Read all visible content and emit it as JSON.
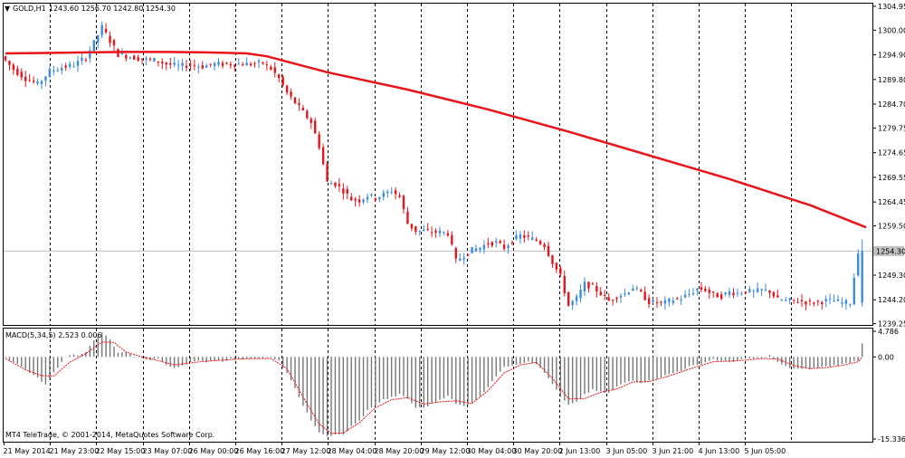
{
  "header": {
    "symbol_label": "GOLD,H1",
    "ohlc": "1243.60 1256.70 1242.80 1254.30"
  },
  "colors": {
    "bull": "#3a8dde",
    "bear": "#e8141a",
    "ma_line": "#e8141a",
    "macd_hist": "#777777",
    "macd_signal": "#e8141a",
    "grid": "#000000",
    "price_tag_bg": "#c0c0c0"
  },
  "price_tag": "1254.30",
  "chart_data": [
    {
      "type": "candlestick",
      "title": "GOLD,H1",
      "ylim": [
        1239.0,
        1305.5
      ],
      "y_ticks": [
        "1304.95",
        "1300.00",
        "1294.90",
        "1289.80",
        "1284.70",
        "1279.75",
        "1274.65",
        "1269.55",
        "1264.45",
        "1259.50",
        "1254.30",
        "1249.30",
        "1244.20",
        "1239.25"
      ],
      "current_price": 1254.3,
      "ma_line": [
        {
          "x": 0,
          "y": 1295.2
        },
        {
          "x": 10,
          "y": 1295.3
        },
        {
          "x": 20,
          "y": 1295.4
        },
        {
          "x": 30,
          "y": 1295.5
        },
        {
          "x": 40,
          "y": 1295.5
        },
        {
          "x": 50,
          "y": 1295.4
        },
        {
          "x": 60,
          "y": 1295.2
        },
        {
          "x": 65,
          "y": 1294.6
        },
        {
          "x": 70,
          "y": 1293.5
        },
        {
          "x": 80,
          "y": 1291.3
        },
        {
          "x": 100,
          "y": 1287.7
        },
        {
          "x": 120,
          "y": 1283.6
        },
        {
          "x": 140,
          "y": 1279.0
        },
        {
          "x": 160,
          "y": 1274.1
        },
        {
          "x": 180,
          "y": 1269.2
        },
        {
          "x": 200,
          "y": 1263.8
        },
        {
          "x": 214,
          "y": 1259.2
        }
      ],
      "series_points": [
        [
          0,
          1294.6
        ],
        [
          3,
          1291.9
        ],
        [
          6,
          1290.0
        ],
        [
          9,
          1288.8
        ],
        [
          12,
          1291.5
        ],
        [
          15,
          1292.3
        ],
        [
          18,
          1292.8
        ],
        [
          21,
          1294.4
        ],
        [
          23,
          1297.4
        ],
        [
          25,
          1300.6
        ],
        [
          27,
          1297.8
        ],
        [
          29,
          1295.0
        ],
        [
          32,
          1294.5
        ],
        [
          35,
          1294.0
        ],
        [
          38,
          1293.8
        ],
        [
          41,
          1293.0
        ],
        [
          44,
          1292.6
        ],
        [
          47,
          1292.8
        ],
        [
          50,
          1292.5
        ],
        [
          53,
          1293.0
        ],
        [
          56,
          1293.0
        ],
        [
          59,
          1293.0
        ],
        [
          62,
          1293.0
        ],
        [
          65,
          1293.2
        ],
        [
          67,
          1292.0
        ],
        [
          69,
          1290.0
        ],
        [
          71,
          1287.0
        ],
        [
          73,
          1285.0
        ],
        [
          75,
          1283.0
        ],
        [
          77,
          1281.0
        ],
        [
          79,
          1276.0
        ],
        [
          81,
          1268.5
        ],
        [
          83,
          1268.2
        ],
        [
          85,
          1266.8
        ],
        [
          87,
          1265.0
        ],
        [
          89,
          1264.8
        ],
        [
          91,
          1265.8
        ],
        [
          93,
          1265.3
        ],
        [
          95,
          1266.0
        ],
        [
          97,
          1266.8
        ],
        [
          99,
          1265.5
        ],
        [
          101,
          1260.0
        ],
        [
          103,
          1258.5
        ],
        [
          105,
          1258.5
        ],
        [
          107,
          1258.2
        ],
        [
          109,
          1258.2
        ],
        [
          111,
          1258.0
        ],
        [
          113,
          1252.2
        ],
        [
          115,
          1253.5
        ],
        [
          117,
          1254.5
        ],
        [
          119,
          1255.0
        ],
        [
          121,
          1256.0
        ],
        [
          123,
          1256.0
        ],
        [
          125,
          1255.0
        ],
        [
          127,
          1256.5
        ],
        [
          129,
          1257.5
        ],
        [
          131,
          1257.0
        ],
        [
          133,
          1256.5
        ],
        [
          135,
          1255.5
        ],
        [
          137,
          1252.0
        ],
        [
          139,
          1249.0
        ],
        [
          141,
          1243.0
        ],
        [
          143,
          1244.5
        ],
        [
          145,
          1247.5
        ],
        [
          147,
          1246.8
        ],
        [
          149,
          1245.5
        ],
        [
          151,
          1244.0
        ],
        [
          153,
          1245.0
        ],
        [
          155,
          1245.5
        ],
        [
          157,
          1246.8
        ],
        [
          159,
          1245.5
        ],
        [
          161,
          1243.8
        ],
        [
          163,
          1243.6
        ],
        [
          165,
          1243.6
        ],
        [
          167,
          1244.2
        ],
        [
          169,
          1244.5
        ],
        [
          171,
          1245.4
        ],
        [
          173,
          1246.5
        ],
        [
          175,
          1246.3
        ],
        [
          177,
          1245.2
        ],
        [
          179,
          1245.0
        ],
        [
          181,
          1245.8
        ],
        [
          183,
          1245.6
        ],
        [
          185,
          1246.0
        ],
        [
          187,
          1245.8
        ],
        [
          189,
          1246.2
        ],
        [
          191,
          1246.0
        ],
        [
          193,
          1244.2
        ],
        [
          195,
          1244.0
        ],
        [
          197,
          1244.0
        ],
        [
          199,
          1243.9
        ],
        [
          201,
          1243.6
        ],
        [
          203,
          1243.8
        ],
        [
          205,
          1244.0
        ],
        [
          207,
          1244.0
        ],
        [
          209,
          1243.6
        ],
        [
          211,
          1243.6
        ],
        [
          213,
          1254.3
        ]
      ]
    },
    {
      "type": "bar",
      "title": "MACD(5,34,5) 2.523 0.006",
      "y_ticks": [
        "4.786",
        "0.00",
        "-15.336"
      ],
      "ylim": [
        -15.336,
        4.786
      ],
      "histogram_points": [
        [
          0,
          -0.3
        ],
        [
          4,
          -1.8
        ],
        [
          8,
          -4.0
        ],
        [
          10,
          -5.3
        ],
        [
          12,
          -3.0
        ],
        [
          14,
          -0.8
        ],
        [
          16,
          0.4
        ],
        [
          18,
          0.4
        ],
        [
          20,
          1.0
        ],
        [
          22,
          3.0
        ],
        [
          24,
          4.6
        ],
        [
          26,
          3.2
        ],
        [
          28,
          0.7
        ],
        [
          30,
          0.9
        ],
        [
          32,
          0.0
        ],
        [
          34,
          -0.3
        ],
        [
          36,
          -0.5
        ],
        [
          38,
          -0.3
        ],
        [
          40,
          -1.6
        ],
        [
          42,
          -2.0
        ],
        [
          44,
          -1.6
        ],
        [
          46,
          -1.0
        ],
        [
          48,
          -0.8
        ],
        [
          50,
          -0.9
        ],
        [
          52,
          -0.6
        ],
        [
          54,
          -0.8
        ],
        [
          56,
          -0.4
        ],
        [
          58,
          -0.5
        ],
        [
          60,
          -0.2
        ],
        [
          62,
          -0.3
        ],
        [
          64,
          -0.3
        ],
        [
          66,
          -0.2
        ],
        [
          68,
          -0.8
        ],
        [
          70,
          -3.0
        ],
        [
          72,
          -6.0
        ],
        [
          74,
          -9.0
        ],
        [
          76,
          -12.0
        ],
        [
          78,
          -14.0
        ],
        [
          80,
          -14.8
        ],
        [
          82,
          -14.6
        ],
        [
          84,
          -14.6
        ],
        [
          86,
          -13.0
        ],
        [
          88,
          -12.0
        ],
        [
          90,
          -10.0
        ],
        [
          92,
          -9.0
        ],
        [
          94,
          -8.0
        ],
        [
          96,
          -7.6
        ],
        [
          98,
          -7.0
        ],
        [
          100,
          -7.8
        ],
        [
          102,
          -9.5
        ],
        [
          104,
          -9.5
        ],
        [
          106,
          -8.8
        ],
        [
          108,
          -8.0
        ],
        [
          110,
          -7.2
        ],
        [
          112,
          -8.8
        ],
        [
          114,
          -9.2
        ],
        [
          116,
          -8.5
        ],
        [
          118,
          -7.5
        ],
        [
          120,
          -5.5
        ],
        [
          122,
          -3.5
        ],
        [
          124,
          -2.0
        ],
        [
          126,
          -1.5
        ],
        [
          128,
          -1.2
        ],
        [
          130,
          -0.8
        ],
        [
          132,
          -1.3
        ],
        [
          134,
          -3.0
        ],
        [
          136,
          -5.0
        ],
        [
          138,
          -7.5
        ],
        [
          140,
          -9.0
        ],
        [
          142,
          -8.5
        ],
        [
          144,
          -7.0
        ],
        [
          146,
          -6.2
        ],
        [
          148,
          -6.5
        ],
        [
          150,
          -6.8
        ],
        [
          152,
          -5.6
        ],
        [
          154,
          -4.8
        ],
        [
          156,
          -4.3
        ],
        [
          158,
          -4.8
        ],
        [
          160,
          -4.5
        ],
        [
          162,
          -4.0
        ],
        [
          164,
          -3.5
        ],
        [
          166,
          -3.0
        ],
        [
          168,
          -2.5
        ],
        [
          170,
          -1.8
        ],
        [
          172,
          -1.5
        ],
        [
          174,
          -1.0
        ],
        [
          176,
          -0.4
        ],
        [
          178,
          -0.8
        ],
        [
          180,
          -1.0
        ],
        [
          182,
          -0.6
        ],
        [
          184,
          -0.4
        ],
        [
          186,
          -0.3
        ],
        [
          188,
          -0.3
        ],
        [
          190,
          0.3
        ],
        [
          192,
          -1.0
        ],
        [
          194,
          -1.8
        ],
        [
          196,
          -2.2
        ],
        [
          198,
          -2.3
        ],
        [
          200,
          -2.2
        ],
        [
          202,
          -2.0
        ],
        [
          204,
          -1.8
        ],
        [
          206,
          -1.6
        ],
        [
          208,
          -1.4
        ],
        [
          210,
          -1.0
        ],
        [
          212,
          -0.6
        ],
        [
          213,
          2.523
        ]
      ],
      "signal_points": [
        [
          0,
          -0.3
        ],
        [
          5,
          -2.4
        ],
        [
          9,
          -3.5
        ],
        [
          12,
          -3.6
        ],
        [
          16,
          -1.0
        ],
        [
          20,
          0.6
        ],
        [
          24,
          2.8
        ],
        [
          27,
          2.7
        ],
        [
          30,
          0.9
        ],
        [
          34,
          0.0
        ],
        [
          38,
          -0.7
        ],
        [
          42,
          -1.5
        ],
        [
          46,
          -1.1
        ],
        [
          50,
          -0.8
        ],
        [
          54,
          -0.6
        ],
        [
          58,
          -0.4
        ],
        [
          62,
          -0.3
        ],
        [
          66,
          -0.3
        ],
        [
          70,
          -2.2
        ],
        [
          74,
          -7.5
        ],
        [
          78,
          -12.5
        ],
        [
          81,
          -14.3
        ],
        [
          84,
          -14.2
        ],
        [
          88,
          -12.3
        ],
        [
          92,
          -9.5
        ],
        [
          96,
          -8.0
        ],
        [
          100,
          -7.6
        ],
        [
          104,
          -8.8
        ],
        [
          108,
          -8.4
        ],
        [
          112,
          -8.2
        ],
        [
          116,
          -8.7
        ],
        [
          120,
          -6.3
        ],
        [
          124,
          -3.0
        ],
        [
          128,
          -1.5
        ],
        [
          132,
          -1.0
        ],
        [
          136,
          -4.0
        ],
        [
          140,
          -7.8
        ],
        [
          144,
          -7.8
        ],
        [
          148,
          -6.6
        ],
        [
          152,
          -6.0
        ],
        [
          156,
          -4.7
        ],
        [
          160,
          -4.6
        ],
        [
          164,
          -3.8
        ],
        [
          168,
          -2.8
        ],
        [
          172,
          -1.8
        ],
        [
          176,
          -0.9
        ],
        [
          180,
          -0.8
        ],
        [
          184,
          -0.6
        ],
        [
          188,
          -0.3
        ],
        [
          192,
          -0.4
        ],
        [
          196,
          -1.6
        ],
        [
          200,
          -2.2
        ],
        [
          204,
          -2.0
        ],
        [
          208,
          -1.6
        ],
        [
          212,
          -0.9
        ],
        [
          213,
          0.006
        ]
      ]
    }
  ],
  "x_labels": [
    "21 May 2014",
    "21 May 23:00",
    "22 May 15:00",
    "23 May 07:00",
    "26 May 00:00",
    "26 May 16:00",
    "27 May 12:00",
    "28 May 04:00",
    "28 May 20:00",
    "29 May 12:00",
    "30 May 04:00",
    "30 May 20:00",
    "2 Jun 13:00",
    "3 Jun 05:00",
    "3 Jun 21:00",
    "4 Jun 13:00",
    "5 Jun 05:00"
  ],
  "copyright": "MT4 TeleTrade, © 2001-2014, MetaQuotes Software Corp."
}
